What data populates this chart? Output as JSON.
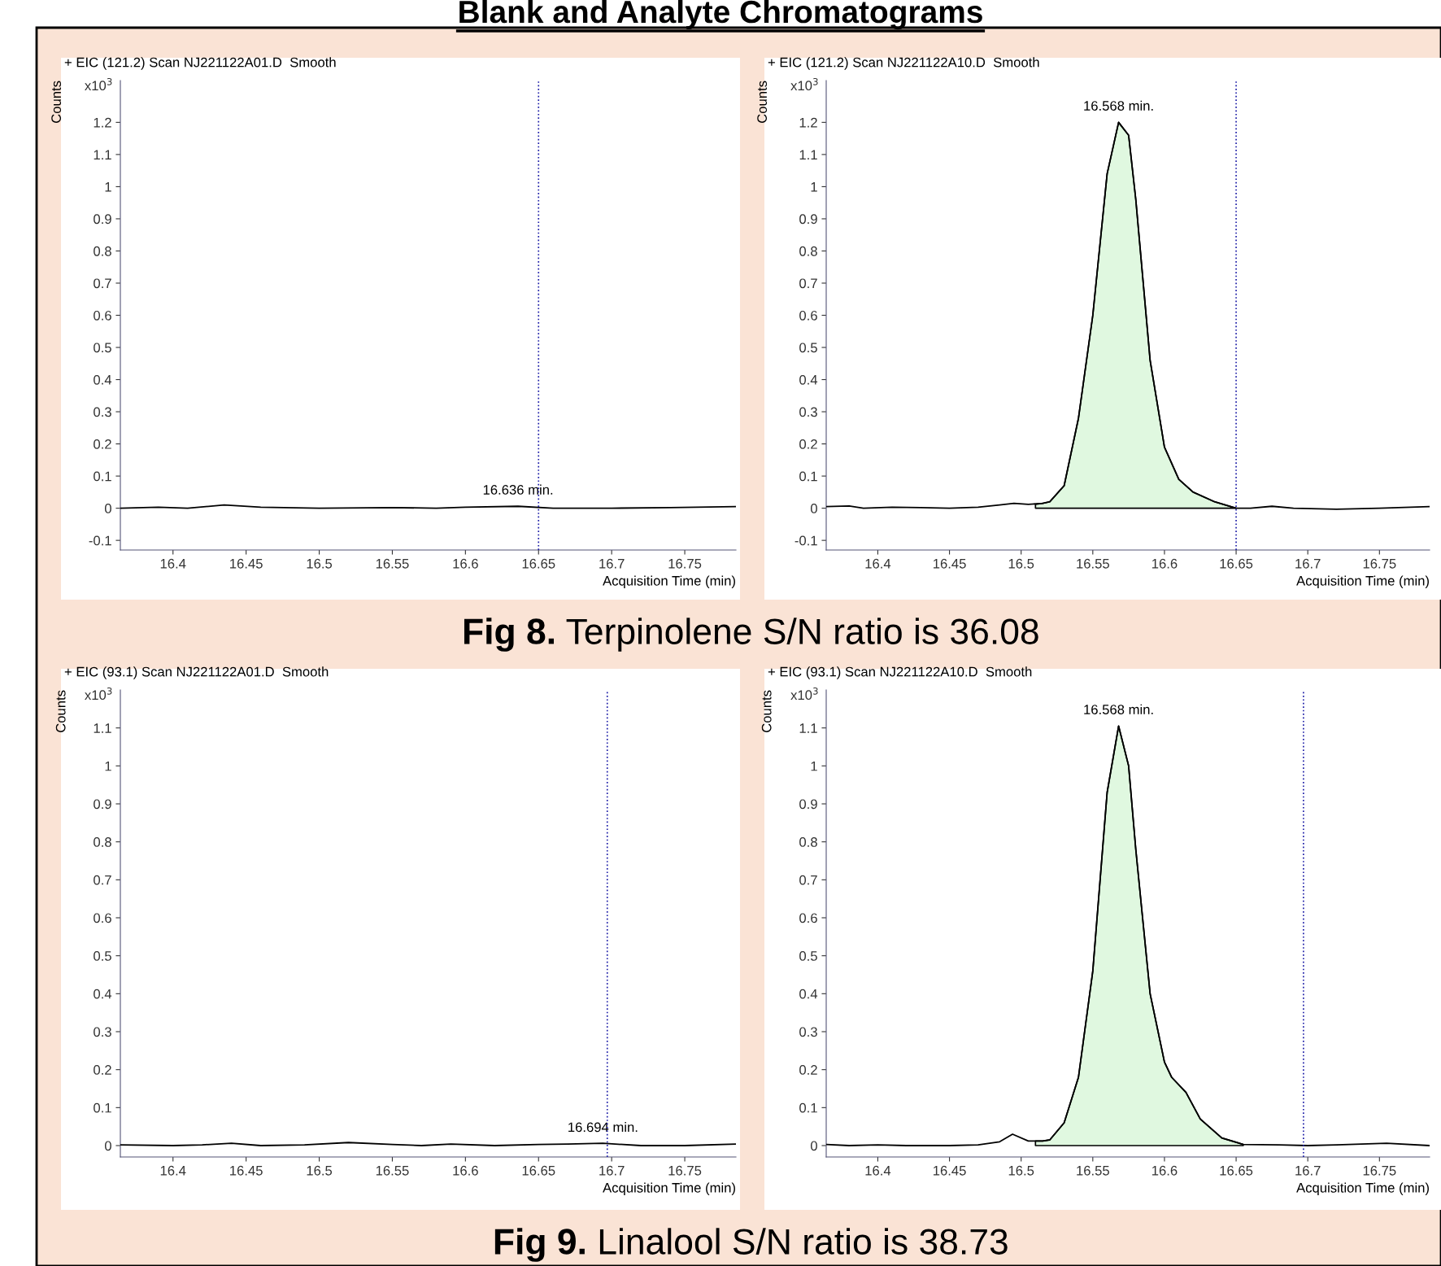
{
  "chart_data": [
    {
      "type": "other",
      "title": "Blank and Analyte Chromatograms"
    },
    {
      "type": "line",
      "title": "+ EIC (121.2) Scan NJ221122A01.D  Smooth",
      "xlabel": "Acquisition Time (min)",
      "ylabel": "Counts",
      "annotations": [
        "x10$^{3}$",
        {
          "text": "16.636 min.",
          "x": 16.636,
          "y": 0.006
        }
      ],
      "series": [
        {
          "color": "#000000",
          "x": [
            16.364,
            16.39,
            16.41,
            16.435,
            16.46,
            16.5,
            16.55,
            16.58,
            16.6,
            16.636,
            16.66,
            16.7,
            16.74,
            16.785
          ],
          "values": [
            0,
            0.003,
            0,
            0.01,
            0.003,
            0,
            0.002,
            0,
            0.003,
            0.006,
            0,
            0,
            0.002,
            0.005
          ]
        }
      ],
      "xlim": [
        16.364,
        16.785
      ],
      "xticks": [
        16.4,
        16.45,
        16.5,
        16.55,
        16.6,
        16.65,
        16.7,
        16.75
      ],
      "ylim": [
        -0.13,
        1.33
      ],
      "yticks": [
        -0.1,
        0,
        0.1,
        0.2,
        0.3,
        0.4,
        0.5,
        0.6,
        0.7,
        0.8,
        0.9,
        1,
        1.1,
        1.2
      ],
      "ref_lines": [
        {
          "axis": "x",
          "value": 16.65,
          "color": "#1a1aa6",
          "line_style": "dotted"
        }
      ]
    },
    {
      "type": "line",
      "title": "+ EIC (121.2) Scan NJ221122A10.D  Smooth",
      "xlabel": "Acquisition Time (min)",
      "ylabel": "Counts",
      "annotations": [
        "x10$^{3}$",
        {
          "text": "16.568 min.",
          "x": 16.568,
          "y": 1.2
        }
      ],
      "series": [
        {
          "color": "#000000",
          "x": [
            16.364,
            16.38,
            16.39,
            16.41,
            16.43,
            16.45,
            16.47,
            16.485,
            16.495,
            16.505,
            16.515,
            16.52,
            16.53,
            16.54,
            16.55,
            16.56,
            16.568,
            16.575,
            16.58,
            16.59,
            16.6,
            16.61,
            16.62,
            16.635,
            16.65,
            16.66,
            16.675,
            16.69,
            16.72,
            16.75,
            16.785
          ],
          "values": [
            0.005,
            0.007,
            0,
            0.003,
            0.002,
            0,
            0.003,
            0.01,
            0.015,
            0.012,
            0.015,
            0.02,
            0.07,
            0.28,
            0.6,
            1.04,
            1.2,
            1.16,
            0.96,
            0.46,
            0.19,
            0.09,
            0.05,
            0.02,
            0,
            0,
            0.006,
            0,
            -0.003,
            0,
            0.005
          ]
        },
        {
          "type": "area",
          "color": "#e0f8e0",
          "x": [
            16.51,
            16.515,
            16.52,
            16.53,
            16.54,
            16.55,
            16.56,
            16.568,
            16.575,
            16.58,
            16.59,
            16.6,
            16.61,
            16.62,
            16.635,
            16.65
          ],
          "values": [
            0.012,
            0.015,
            0.02,
            0.07,
            0.28,
            0.6,
            1.04,
            1.2,
            1.16,
            0.96,
            0.46,
            0.19,
            0.09,
            0.05,
            0.02,
            0
          ]
        }
      ],
      "xlim": [
        16.364,
        16.785
      ],
      "xticks": [
        16.4,
        16.45,
        16.5,
        16.55,
        16.6,
        16.65,
        16.7,
        16.75
      ],
      "ylim": [
        -0.13,
        1.33
      ],
      "yticks": [
        -0.1,
        0,
        0.1,
        0.2,
        0.3,
        0.4,
        0.5,
        0.6,
        0.7,
        0.8,
        0.9,
        1,
        1.1,
        1.2
      ],
      "ref_lines": [
        {
          "axis": "x",
          "value": 16.65,
          "color": "#1a1aa6",
          "line_style": "dotted"
        }
      ]
    },
    {
      "type": "other",
      "title": "Fig 8. Terpinolene S/N ratio is 36.08"
    },
    {
      "type": "line",
      "title": "+ EIC (93.1) Scan NJ221122A01.D  Smooth",
      "xlabel": "Acquisition Time (min)",
      "ylabel": "Counts",
      "annotations": [
        "x10$^{3}$",
        {
          "text": "16.694 min.",
          "x": 16.694,
          "y": 0.005
        }
      ],
      "series": [
        {
          "color": "#000000",
          "x": [
            16.364,
            16.4,
            16.42,
            16.44,
            16.46,
            16.49,
            16.52,
            16.55,
            16.57,
            16.59,
            16.62,
            16.65,
            16.67,
            16.694,
            16.72,
            16.75,
            16.785
          ],
          "values": [
            0.002,
            0,
            0.002,
            0.006,
            0,
            0.002,
            0.008,
            0.003,
            0,
            0.004,
            0,
            0.003,
            0.004,
            0.006,
            0,
            0,
            0.004
          ]
        }
      ],
      "xlim": [
        16.364,
        16.785
      ],
      "xticks": [
        16.4,
        16.45,
        16.5,
        16.55,
        16.6,
        16.65,
        16.7,
        16.75
      ],
      "ylim": [
        -0.03,
        1.2
      ],
      "yticks": [
        0,
        0.1,
        0.2,
        0.3,
        0.4,
        0.5,
        0.6,
        0.7,
        0.8,
        0.9,
        1,
        1.1
      ],
      "ref_lines": [
        {
          "axis": "x",
          "value": 16.697,
          "color": "#1a1aa6",
          "line_style": "dotted"
        }
      ]
    },
    {
      "type": "line",
      "title": "+ EIC (93.1) Scan NJ221122A10.D  Smooth",
      "xlabel": "Acquisition Time (min)",
      "ylabel": "Counts",
      "annotations": [
        "x10$^{3}$",
        {
          "text": "16.568 min.",
          "x": 16.568,
          "y": 1.105
        }
      ],
      "series": [
        {
          "color": "#000000",
          "x": [
            16.364,
            16.38,
            16.4,
            16.42,
            16.45,
            16.47,
            16.485,
            16.494,
            16.505,
            16.515,
            16.52,
            16.53,
            16.54,
            16.55,
            16.56,
            16.568,
            16.575,
            16.58,
            16.59,
            16.6,
            16.605,
            16.615,
            16.625,
            16.64,
            16.655,
            16.68,
            16.7,
            16.72,
            16.755,
            16.785
          ],
          "values": [
            0.003,
            0,
            0.002,
            0,
            0,
            0.002,
            0.01,
            0.03,
            0.012,
            0.012,
            0.015,
            0.06,
            0.18,
            0.46,
            0.93,
            1.105,
            1.0,
            0.78,
            0.4,
            0.22,
            0.18,
            0.14,
            0.07,
            0.02,
            0.003,
            0.002,
            0,
            0.002,
            0.006,
            0
          ]
        },
        {
          "type": "area",
          "color": "#e0f8e0",
          "x": [
            16.51,
            16.515,
            16.52,
            16.53,
            16.54,
            16.55,
            16.56,
            16.568,
            16.575,
            16.58,
            16.59,
            16.6,
            16.605,
            16.615,
            16.625,
            16.64,
            16.655
          ],
          "values": [
            0.012,
            0.012,
            0.015,
            0.06,
            0.18,
            0.46,
            0.93,
            1.105,
            1.0,
            0.78,
            0.4,
            0.22,
            0.18,
            0.14,
            0.07,
            0.02,
            0.003
          ]
        }
      ],
      "xlim": [
        16.364,
        16.785
      ],
      "xticks": [
        16.4,
        16.45,
        16.5,
        16.55,
        16.6,
        16.65,
        16.7,
        16.75
      ],
      "ylim": [
        -0.03,
        1.2
      ],
      "yticks": [
        0,
        0.1,
        0.2,
        0.3,
        0.4,
        0.5,
        0.6,
        0.7,
        0.8,
        0.9,
        1,
        1.1
      ],
      "ref_lines": [
        {
          "axis": "x",
          "value": 16.697,
          "color": "#1a1aa6",
          "line_style": "dotted"
        }
      ]
    },
    {
      "type": "other",
      "title": "Fig 9. Linalool S/N ratio is 38.73"
    }
  ]
}
